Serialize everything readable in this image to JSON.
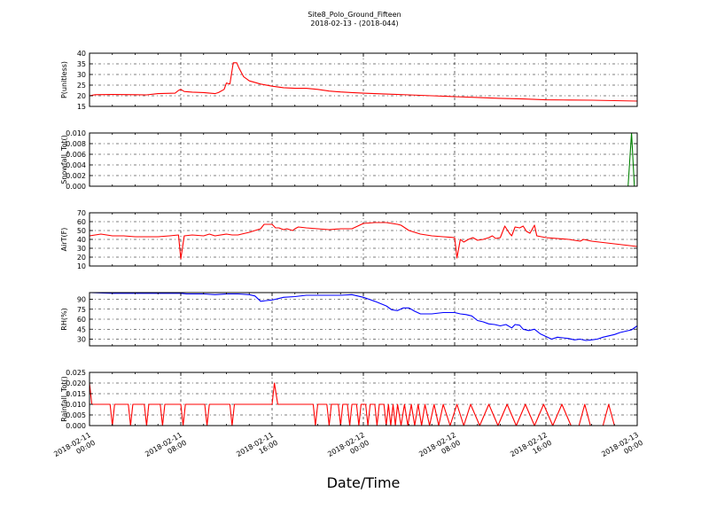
{
  "chart_data": {
    "type": "line",
    "title": "Site8_Polo_Ground_Fifteen",
    "subtitle": "2018-02-13 - (2018-044)",
    "xlabel": "Date/Time",
    "x_tick_labels": [
      [
        "2018-02-11",
        "00:00"
      ],
      [
        "2018-02-11",
        "08:00"
      ],
      [
        "2018-02-11",
        "16:00"
      ],
      [
        "2018-02-12",
        "00:00"
      ],
      [
        "2018-02-12",
        "08:00"
      ],
      [
        "2018-02-12",
        "16:00"
      ],
      [
        "2018-02-13",
        "00:00"
      ]
    ],
    "x_range_hours": [
      0,
      48
    ],
    "grid": true,
    "panels": [
      {
        "ylabel": "P(unitless)",
        "ylim": [
          15,
          40
        ],
        "yticks": [
          15,
          20,
          25,
          30,
          35,
          40
        ],
        "tick_labels": [
          "15",
          "20",
          "25",
          "30",
          "35",
          "40"
        ],
        "color": "#ff0000",
        "series": [
          [
            0,
            20
          ],
          [
            0.5,
            20.5
          ],
          [
            2,
            20.6
          ],
          [
            4,
            20.5
          ],
          [
            5,
            20.4
          ],
          [
            6,
            21
          ],
          [
            7.5,
            21.2
          ],
          [
            7.8,
            22.5
          ],
          [
            8,
            23
          ],
          [
            8.3,
            22
          ],
          [
            9,
            21.7
          ],
          [
            10,
            21.5
          ],
          [
            11,
            21
          ],
          [
            11.3,
            21.5
          ],
          [
            11.8,
            23
          ],
          [
            12,
            26
          ],
          [
            12.3,
            25.5
          ],
          [
            12.6,
            35.5
          ],
          [
            12.9,
            35.5
          ],
          [
            13.1,
            33
          ],
          [
            13.5,
            29
          ],
          [
            14,
            27
          ],
          [
            15,
            25.5
          ],
          [
            16,
            24.5
          ],
          [
            17,
            23.8
          ],
          [
            18,
            23.5
          ],
          [
            19,
            23.5
          ],
          [
            20,
            23
          ],
          [
            21,
            22.2
          ],
          [
            22,
            21.8
          ],
          [
            23,
            21.5
          ],
          [
            24,
            21.2
          ],
          [
            26,
            20.8
          ],
          [
            28,
            20.4
          ],
          [
            30,
            20
          ],
          [
            32,
            19.6
          ],
          [
            34,
            19.2
          ],
          [
            36,
            18.8
          ],
          [
            38,
            18.5
          ],
          [
            40,
            18.1
          ],
          [
            42,
            18
          ],
          [
            44,
            17.9
          ],
          [
            46,
            17.7
          ],
          [
            48,
            17.5
          ]
        ]
      },
      {
        "ylabel": "Snowfall_Tot()",
        "ylim": [
          0,
          0.01
        ],
        "yticks": [
          0,
          0.002,
          0.004,
          0.006,
          0.008,
          0.01
        ],
        "tick_labels": [
          "0.000",
          "0.002",
          "0.004",
          "0.006",
          "0.008",
          "0.010"
        ],
        "color": "#008000",
        "series": [
          [
            0,
            0
          ],
          [
            47.2,
            0
          ],
          [
            47.5,
            0.01
          ],
          [
            47.75,
            0
          ],
          [
            48,
            0
          ]
        ]
      },
      {
        "ylabel": "AirT(F)",
        "ylim": [
          10,
          70
        ],
        "yticks": [
          10,
          20,
          30,
          40,
          50,
          60,
          70
        ],
        "tick_labels": [
          "10",
          "20",
          "30",
          "40",
          "50",
          "60",
          "70"
        ],
        "color": "#ff0000",
        "series": [
          [
            0,
            44
          ],
          [
            1,
            46
          ],
          [
            2,
            44
          ],
          [
            3,
            44
          ],
          [
            4,
            43
          ],
          [
            5,
            43
          ],
          [
            6,
            43
          ],
          [
            7,
            44
          ],
          [
            7.8,
            45
          ],
          [
            8,
            18
          ],
          [
            8.3,
            44
          ],
          [
            9,
            45
          ],
          [
            10,
            44
          ],
          [
            10.5,
            46
          ],
          [
            11,
            44
          ],
          [
            12,
            46
          ],
          [
            12.5,
            45
          ],
          [
            13,
            45
          ],
          [
            14,
            48
          ],
          [
            15,
            52
          ],
          [
            15.3,
            57
          ],
          [
            16,
            57
          ],
          [
            16.3,
            53
          ],
          [
            16.6,
            53
          ],
          [
            17,
            51
          ],
          [
            17.3,
            52
          ],
          [
            17.8,
            50
          ],
          [
            18,
            52
          ],
          [
            18.3,
            54
          ],
          [
            19,
            53
          ],
          [
            20,
            52
          ],
          [
            21,
            51
          ],
          [
            22,
            52
          ],
          [
            23,
            52
          ],
          [
            23.5,
            55
          ],
          [
            24,
            58
          ],
          [
            25,
            59
          ],
          [
            26,
            59
          ],
          [
            27,
            57
          ],
          [
            27.3,
            56
          ],
          [
            28,
            50
          ],
          [
            29,
            46
          ],
          [
            30,
            44
          ],
          [
            31,
            43
          ],
          [
            32,
            42
          ],
          [
            32.2,
            19
          ],
          [
            32.5,
            40
          ],
          [
            32.8,
            37
          ],
          [
            33.2,
            40
          ],
          [
            33.6,
            42
          ],
          [
            34,
            39
          ],
          [
            34.5,
            40
          ],
          [
            35,
            42
          ],
          [
            35.3,
            44
          ],
          [
            35.6,
            41
          ],
          [
            36,
            42
          ],
          [
            36.4,
            55
          ],
          [
            36.8,
            47
          ],
          [
            37,
            44
          ],
          [
            37.3,
            54
          ],
          [
            37.7,
            53
          ],
          [
            38,
            55
          ],
          [
            38.3,
            49
          ],
          [
            38.6,
            47
          ],
          [
            39,
            56
          ],
          [
            39.2,
            44
          ],
          [
            40,
            42
          ],
          [
            42,
            40
          ],
          [
            43,
            38
          ],
          [
            43.3,
            40
          ],
          [
            44,
            38
          ],
          [
            46,
            35
          ],
          [
            48,
            32
          ]
        ]
      },
      {
        "ylabel": "RH(%)",
        "ylim": [
          20,
          100
        ],
        "yticks": [
          30,
          45,
          60,
          75,
          90
        ],
        "tick_labels": [
          "30",
          "45",
          "60",
          "75",
          "90"
        ],
        "color": "#0000ff",
        "series": [
          [
            0,
            100
          ],
          [
            2,
            99
          ],
          [
            4,
            99
          ],
          [
            6,
            99
          ],
          [
            8,
            99
          ],
          [
            8.5,
            98
          ],
          [
            10,
            98
          ],
          [
            11,
            97
          ],
          [
            12,
            98
          ],
          [
            13,
            98
          ],
          [
            14,
            97
          ],
          [
            14.5,
            95
          ],
          [
            15,
            87
          ],
          [
            15.5,
            88
          ],
          [
            16,
            89
          ],
          [
            16.3,
            90
          ],
          [
            17,
            93
          ],
          [
            18,
            94
          ],
          [
            19,
            96
          ],
          [
            20,
            96
          ],
          [
            21,
            96
          ],
          [
            22,
            96
          ],
          [
            23,
            97
          ],
          [
            24,
            93
          ],
          [
            24.5,
            90
          ],
          [
            25,
            87
          ],
          [
            26,
            80
          ],
          [
            26.5,
            74
          ],
          [
            27,
            73
          ],
          [
            27.5,
            77
          ],
          [
            28,
            77
          ],
          [
            28.5,
            72
          ],
          [
            29,
            68
          ],
          [
            30,
            68
          ],
          [
            31,
            70
          ],
          [
            32,
            70
          ],
          [
            32.5,
            68
          ],
          [
            33,
            67
          ],
          [
            33.5,
            65
          ],
          [
            34,
            58
          ],
          [
            34.5,
            56
          ],
          [
            35,
            53
          ],
          [
            35.5,
            52
          ],
          [
            36,
            50
          ],
          [
            36.5,
            52
          ],
          [
            37,
            47
          ],
          [
            37.3,
            52
          ],
          [
            37.7,
            51
          ],
          [
            38,
            45
          ],
          [
            38.5,
            43
          ],
          [
            39,
            45
          ],
          [
            39.5,
            38
          ],
          [
            40,
            34
          ],
          [
            40.5,
            30
          ],
          [
            41,
            33
          ],
          [
            41.5,
            32
          ],
          [
            42,
            31
          ],
          [
            42.5,
            29
          ],
          [
            43,
            30
          ],
          [
            43.5,
            28
          ],
          [
            44,
            29
          ],
          [
            44.5,
            30
          ],
          [
            45,
            33
          ],
          [
            46,
            37
          ],
          [
            46.5,
            40
          ],
          [
            47,
            42
          ],
          [
            47.5,
            44
          ],
          [
            48,
            50
          ]
        ]
      },
      {
        "ylabel": "Rainfall_Tot()",
        "ylim": [
          0,
          0.025
        ],
        "yticks": [
          0,
          0.005,
          0.01,
          0.015,
          0.02,
          0.025
        ],
        "tick_labels": [
          "0.000",
          "0.005",
          "0.010",
          "0.015",
          "0.020",
          "0.025"
        ],
        "color": "#ff0000",
        "series": [
          [
            0,
            0.02
          ],
          [
            0.2,
            0.01
          ],
          [
            1.8,
            0.01
          ],
          [
            2,
            0
          ],
          [
            2.2,
            0.01
          ],
          [
            3.4,
            0.01
          ],
          [
            3.6,
            0
          ],
          [
            3.8,
            0.01
          ],
          [
            4.8,
            0.01
          ],
          [
            5,
            0
          ],
          [
            5.2,
            0.01
          ],
          [
            6.2,
            0.01
          ],
          [
            6.4,
            0
          ],
          [
            6.6,
            0.01
          ],
          [
            8,
            0.01
          ],
          [
            8.2,
            0
          ],
          [
            8.4,
            0.01
          ],
          [
            10.1,
            0.01
          ],
          [
            10.3,
            0
          ],
          [
            10.5,
            0.01
          ],
          [
            12.3,
            0.01
          ],
          [
            12.5,
            0
          ],
          [
            12.7,
            0.01
          ],
          [
            16,
            0.01
          ],
          [
            16.2,
            0.02
          ],
          [
            16.5,
            0.01
          ],
          [
            19.6,
            0.01
          ],
          [
            19.8,
            0
          ],
          [
            20,
            0.01
          ],
          [
            20.8,
            0.01
          ],
          [
            21,
            0
          ],
          [
            21.2,
            0.01
          ],
          [
            21.8,
            0.01
          ],
          [
            22,
            0
          ],
          [
            22.2,
            0.01
          ],
          [
            22.6,
            0.01
          ],
          [
            22.8,
            0
          ],
          [
            23,
            0.01
          ],
          [
            23.4,
            0.01
          ],
          [
            23.6,
            0
          ],
          [
            23.8,
            0.01
          ],
          [
            24.2,
            0.01
          ],
          [
            24.4,
            0
          ],
          [
            24.6,
            0.01
          ],
          [
            25,
            0.01
          ],
          [
            25.2,
            0
          ],
          [
            25.4,
            0.01
          ],
          [
            25.8,
            0.01
          ],
          [
            26,
            0
          ],
          [
            26.2,
            0.01
          ],
          [
            26.4,
            0
          ],
          [
            26.6,
            0.01
          ],
          [
            26.8,
            0
          ],
          [
            27,
            0.01
          ],
          [
            27.3,
            0
          ],
          [
            27.6,
            0.01
          ],
          [
            27.9,
            0
          ],
          [
            28.2,
            0.01
          ],
          [
            28.5,
            0
          ],
          [
            28.8,
            0.01
          ],
          [
            29.1,
            0
          ],
          [
            29.4,
            0.01
          ],
          [
            29.8,
            0
          ],
          [
            30.2,
            0.01
          ],
          [
            30.6,
            0
          ],
          [
            31,
            0.01
          ],
          [
            31.6,
            0
          ],
          [
            32.2,
            0.01
          ],
          [
            32.8,
            0
          ],
          [
            33.4,
            0.01
          ],
          [
            34.2,
            0
          ],
          [
            35,
            0.01
          ],
          [
            35.8,
            0
          ],
          [
            36.6,
            0.01
          ],
          [
            37.4,
            0
          ],
          [
            38.2,
            0.01
          ],
          [
            39,
            0
          ],
          [
            39.8,
            0.01
          ],
          [
            40.6,
            0
          ],
          [
            41.4,
            0.01
          ],
          [
            42.2,
            0
          ],
          [
            42.9,
            0
          ],
          [
            43.4,
            0.01
          ],
          [
            43.9,
            0
          ],
          [
            44.5,
            0
          ],
          [
            45,
            0
          ],
          [
            45.5,
            0.01
          ],
          [
            46,
            0
          ],
          [
            48,
            0
          ]
        ]
      }
    ]
  }
}
